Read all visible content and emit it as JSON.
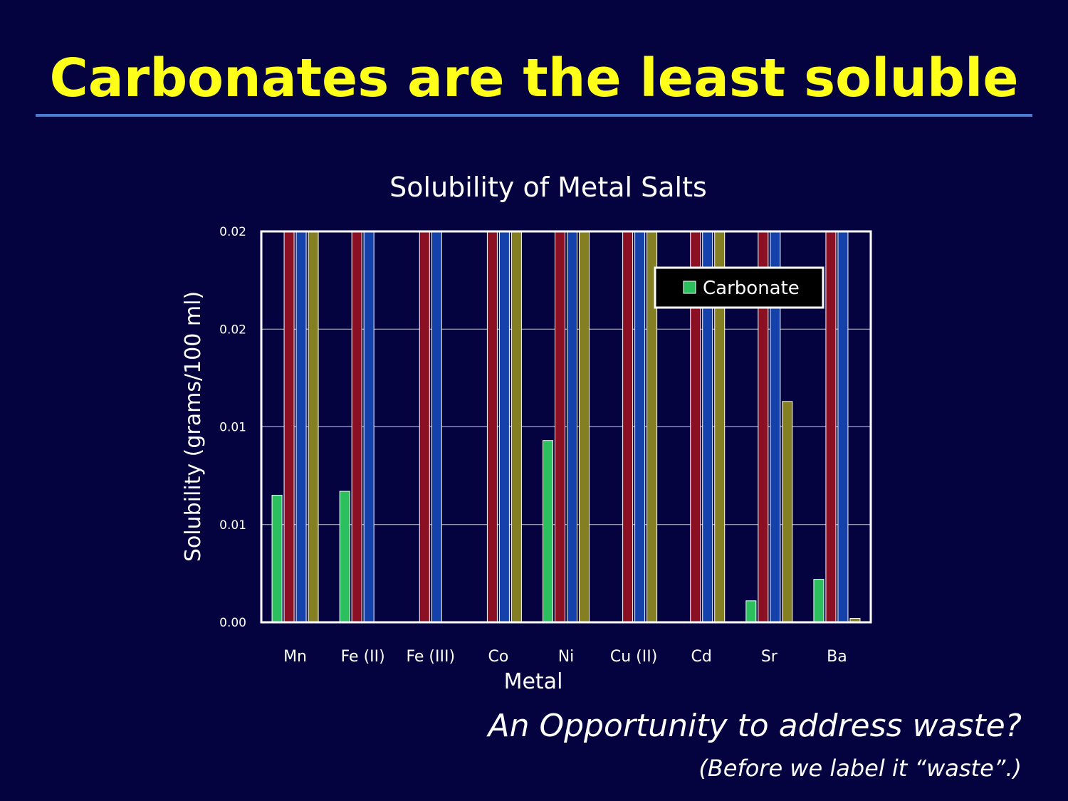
{
  "slide": {
    "title": "Carbonates are the least soluble",
    "tagline": "An Opportunity to address waste?",
    "tagline_note": "(Before we label it “waste”.)"
  },
  "colors": {
    "background": "#04033f",
    "title": "#ffff1a",
    "rule": "#4a7ad2"
  },
  "chart_data": {
    "type": "bar",
    "title": "Solubility of Metal Salts",
    "xlabel": "Metal",
    "ylabel": "Solubility (grams/100 ml)",
    "ylim": [
      0,
      0.02
    ],
    "yticks": [
      0,
      0.005,
      0.01,
      0.015,
      0.02
    ],
    "ytick_labels": [
      "0.00",
      "0.01",
      "0.01",
      "0.02",
      "0.02"
    ],
    "grid": true,
    "categories": [
      "Mn",
      "Fe (II)",
      "Fe (III)",
      "Co",
      "Ni",
      "Cu (II)",
      "Cd",
      "Sr",
      "Ba"
    ],
    "legend": {
      "position": "top-right",
      "entries": [
        "Carbonate"
      ]
    },
    "series": [
      {
        "name": "Carbonate",
        "color": "#2bbf5e",
        "values": [
          0.0065,
          0.0067,
          null,
          null,
          0.0093,
          null,
          null,
          0.0011,
          0.0022
        ]
      },
      {
        "color": "#8c1024",
        "values": [
          0.02,
          0.02,
          0.02,
          0.02,
          0.02,
          0.02,
          0.02,
          0.02,
          0.02
        ]
      },
      {
        "color": "#1442aa",
        "values": [
          0.02,
          0.02,
          0.02,
          0.02,
          0.02,
          0.02,
          0.02,
          0.02,
          0.02
        ]
      },
      {
        "color": "#847f23",
        "values": [
          0.02,
          null,
          null,
          0.02,
          0.02,
          0.02,
          0.02,
          0.0113,
          0.0002
        ]
      }
    ]
  }
}
